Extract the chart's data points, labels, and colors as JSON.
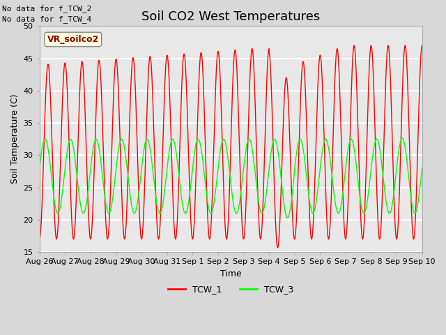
{
  "title": "Soil CO2 West Temperatures",
  "xlabel": "Time",
  "ylabel": "Soil Temperature (C)",
  "ylim": [
    15,
    50
  ],
  "yticks": [
    15,
    20,
    25,
    30,
    35,
    40,
    45,
    50
  ],
  "x_tick_labels": [
    "Aug 26",
    "Aug 27",
    "Aug 28",
    "Aug 29",
    "Aug 30",
    "Aug 31",
    "Sep 1",
    "Sep 2",
    "Sep 3",
    "Sep 4",
    "Sep 5",
    "Sep 6",
    "Sep 7",
    "Sep 8",
    "Sep 9",
    "Sep 10"
  ],
  "no_data_text": [
    "No data for f_TCW_2",
    "No data for f_TCW_4"
  ],
  "annotation_text": "VR_soilco2",
  "legend_entries": [
    "TCW_1",
    "TCW_3"
  ],
  "line1_color": "red",
  "line2_color": "#00ff00",
  "fig_bg_color": "#d8d8d8",
  "axes_bg_color": "#e8e8e8",
  "grid_color": "white",
  "title_fontsize": 13,
  "axis_fontsize": 9,
  "tick_fontsize": 8,
  "n_days": 15,
  "cycles_per_day_tcw1": 1.5,
  "cycles_per_day_tcw3": 1.0
}
